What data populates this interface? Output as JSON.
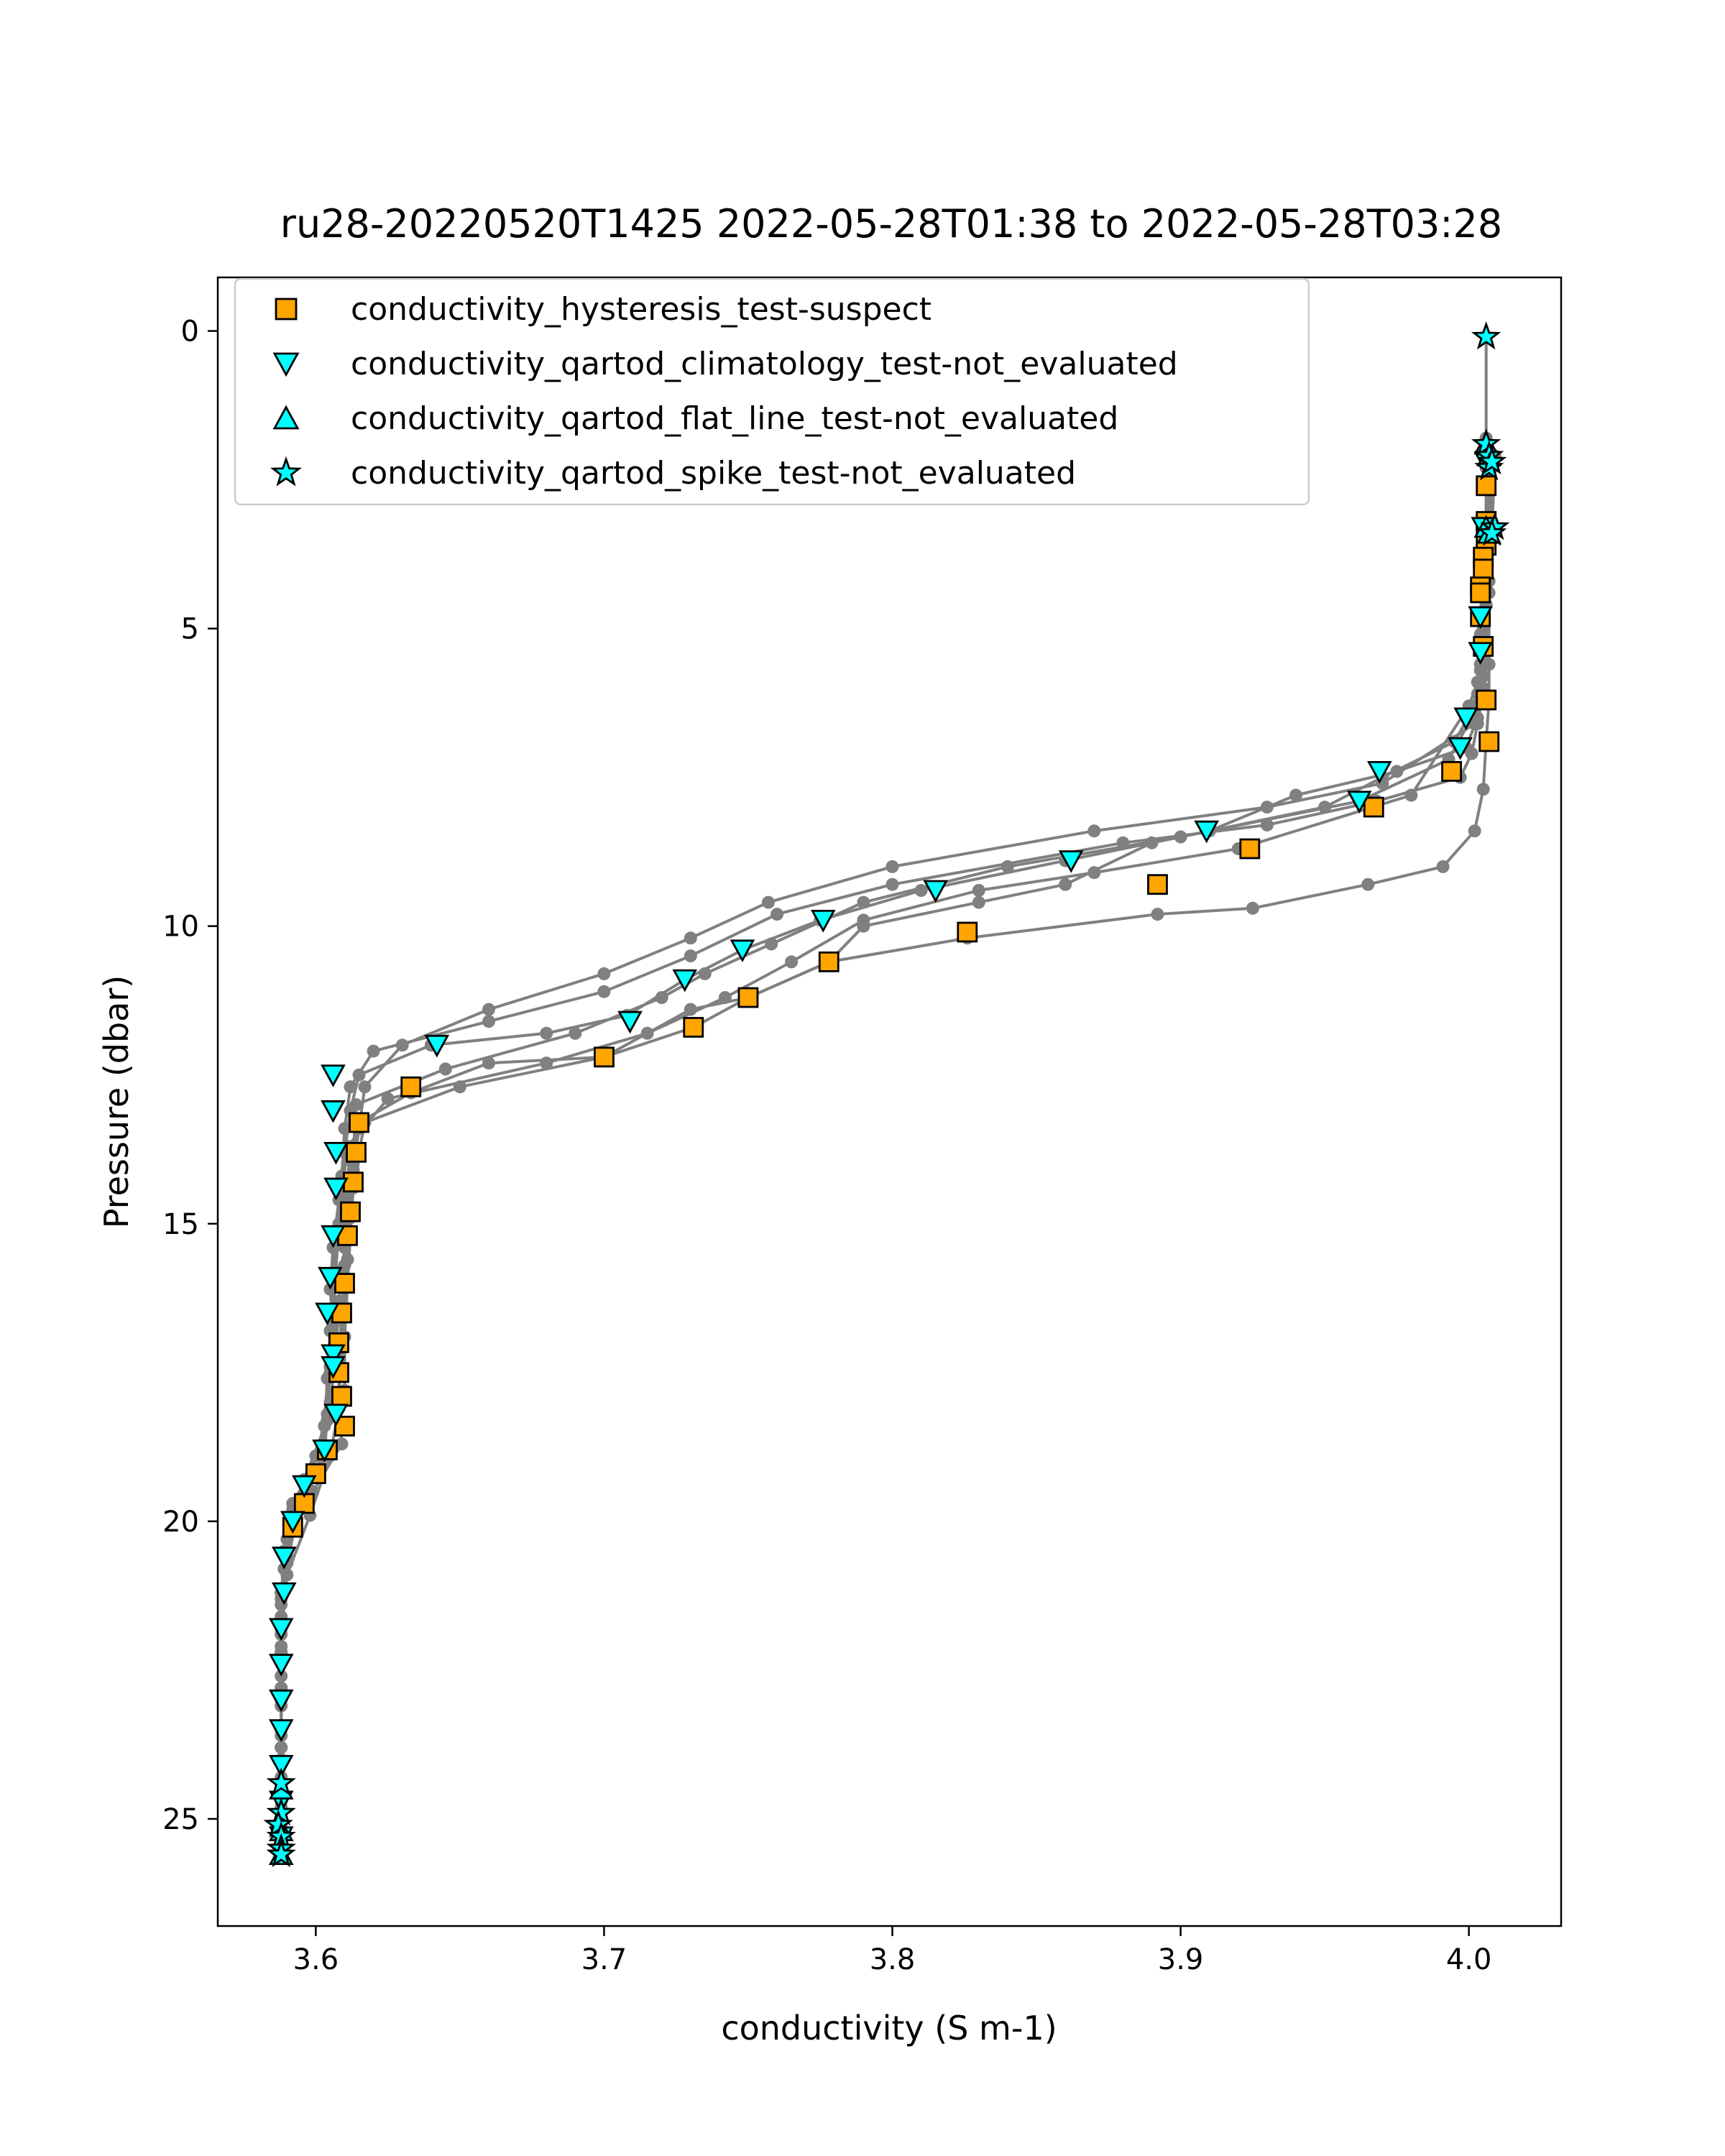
{
  "chart_data": {
    "type": "scatter",
    "title": "ru28-20220520T1425 2022-05-28T01:38 to 2022-05-28T03:28",
    "xlabel": "conductivity (S m-1)",
    "ylabel": "Pressure (dbar)",
    "xlim": [
      3.566,
      4.032
    ],
    "ylim": [
      26.8,
      -0.9
    ],
    "y_inverted": true,
    "grid": false,
    "legend_position": "upper left",
    "x_ticks": [
      3.6,
      3.7,
      3.8,
      3.9,
      4.0
    ],
    "x_tick_labels": [
      "3.6",
      "3.7",
      "3.8",
      "3.9",
      "4.0"
    ],
    "y_ticks": [
      0,
      5,
      10,
      15,
      20,
      25
    ],
    "y_tick_labels": [
      "0",
      "5",
      "10",
      "15",
      "20",
      "25"
    ],
    "colors": {
      "profile_line": "#808080",
      "hysteresis": "#ffa500",
      "qartod": "#00ffff",
      "edge": "#000000"
    },
    "profiles": [
      {
        "x": [
          4.006,
          4.006,
          4.006,
          4.006,
          4.006,
          4.005,
          4.004,
          4.004,
          4.005,
          4.003,
          3.999,
          3.975,
          3.94,
          3.91,
          3.86,
          3.81,
          3.775,
          3.748,
          3.728,
          3.708,
          3.68,
          3.64,
          3.615,
          3.612,
          3.61,
          3.608,
          3.606,
          3.605,
          3.606,
          3.605,
          3.604,
          3.603,
          3.597,
          3.59,
          3.588,
          3.588,
          3.588,
          3.588,
          3.588,
          3.588,
          3.588
        ],
        "y": [
          0.1,
          1.8,
          2.1,
          2.3,
          3.3,
          4.0,
          4.8,
          5.4,
          6.0,
          6.5,
          7.0,
          7.4,
          7.8,
          8.4,
          8.9,
          9.4,
          9.9,
          10.4,
          10.9,
          11.5,
          11.8,
          12.0,
          12.5,
          13.1,
          13.8,
          14.6,
          15.4,
          16.1,
          16.7,
          17.4,
          18.2,
          18.9,
          19.4,
          20.6,
          21.4,
          22.2,
          23.0,
          23.8,
          24.5,
          25.1,
          25.6
        ]
      },
      {
        "x": [
          4.007,
          4.007,
          4.006,
          4.006,
          4.005,
          4.004,
          4.003,
          4.001,
          3.997,
          3.968,
          3.93,
          3.88,
          3.8,
          3.76,
          3.73,
          3.7,
          3.66,
          3.62,
          3.612,
          3.61,
          3.609,
          3.608,
          3.607,
          3.606,
          3.605,
          3.601,
          3.592,
          3.589,
          3.588,
          3.588,
          3.588,
          3.588,
          3.588
        ],
        "y": [
          2.2,
          3.3,
          4.3,
          5.2,
          5.8,
          6.2,
          6.6,
          7.1,
          7.5,
          7.9,
          8.3,
          8.6,
          9.3,
          9.8,
          10.5,
          11.1,
          11.6,
          12.1,
          12.7,
          13.4,
          14.2,
          15.0,
          15.8,
          16.6,
          17.5,
          18.9,
          19.7,
          20.5,
          21.3,
          22.2,
          23.0,
          24.0,
          25.3
        ]
      },
      {
        "x": [
          4.008,
          4.007,
          4.006,
          4.005,
          4.004,
          4.002,
          3.993,
          3.962,
          3.9,
          3.84,
          3.79,
          3.758,
          3.735,
          3.72,
          3.69,
          3.645,
          3.614,
          3.613,
          3.611,
          3.61,
          3.608,
          3.607,
          3.605,
          3.6,
          3.592,
          3.589,
          3.588,
          3.588,
          3.588,
          3.588
        ],
        "y": [
          2.3,
          3.5,
          4.6,
          5.5,
          6.0,
          6.4,
          7.2,
          7.9,
          8.5,
          9.0,
          9.6,
          10.3,
          10.8,
          11.2,
          11.8,
          12.4,
          13.0,
          13.8,
          14.6,
          15.4,
          16.3,
          17.2,
          18.0,
          18.9,
          19.8,
          20.8,
          21.8,
          22.8,
          23.8,
          24.9
        ]
      },
      {
        "x": [
          4.006,
          4.006,
          4.006,
          4.005,
          4.004,
          4.003,
          4.0,
          3.98,
          3.92,
          3.87,
          3.83,
          3.79,
          3.765,
          3.742,
          3.715,
          3.68,
          3.625,
          3.611,
          3.609,
          3.607,
          3.606,
          3.605,
          3.604,
          3.603,
          3.602,
          3.595,
          3.59,
          3.588,
          3.588,
          3.588,
          3.588
        ],
        "y": [
          2.0,
          2.6,
          3.8,
          4.4,
          5.1,
          5.9,
          6.3,
          7.8,
          8.7,
          9.1,
          9.4,
          9.9,
          10.6,
          11.2,
          11.8,
          12.3,
          12.9,
          13.7,
          14.5,
          15.2,
          16.0,
          16.8,
          17.6,
          18.4,
          19.1,
          19.6,
          20.7,
          21.6,
          22.6,
          23.6,
          24.7
        ]
      },
      {
        "x": [
          4.009,
          4.008,
          4.007,
          4.006,
          4.005,
          4.004,
          4.003,
          4.002,
          3.97,
          3.93,
          3.87,
          3.8,
          3.757,
          3.73,
          3.7,
          3.66,
          3.63,
          3.617,
          3.615,
          3.613,
          3.612,
          3.611,
          3.61,
          3.609,
          3.608,
          3.609,
          3.599,
          3.59,
          3.588,
          3.588,
          3.588,
          3.588
        ],
        "y": [
          2.1,
          3.4,
          4.2,
          4.6,
          5.3,
          5.7,
          6.1,
          6.6,
          7.6,
          8.0,
          8.4,
          9.0,
          9.6,
          10.2,
          10.8,
          11.4,
          12.0,
          12.7,
          13.4,
          14.1,
          14.9,
          15.6,
          16.4,
          17.1,
          17.9,
          18.7,
          19.5,
          20.3,
          21.2,
          22.1,
          23.1,
          24.3
        ]
      },
      {
        "x": [
          4.007,
          4.007,
          4.006,
          4.005,
          4.004,
          4.002,
          3.995,
          3.97,
          3.95,
          3.89,
          3.86,
          3.83,
          3.79,
          3.778,
          3.75,
          3.73,
          3.7,
          3.66,
          3.633,
          3.615,
          3.613,
          3.611,
          3.61,
          3.609,
          3.608,
          3.608,
          3.605,
          3.598,
          3.59,
          3.588,
          3.588,
          3.588,
          3.588
        ],
        "y": [
          2.4,
          3.4,
          4.1,
          5.0,
          5.6,
          6.3,
          6.9,
          7.5,
          8.0,
          8.6,
          9.3,
          9.6,
          10.0,
          10.6,
          11.2,
          11.4,
          12.2,
          12.3,
          12.8,
          13.3,
          14.0,
          14.9,
          15.7,
          16.5,
          17.3,
          18.1,
          18.9,
          19.9,
          20.9,
          21.9,
          22.8,
          23.8,
          24.8
        ]
      },
      {
        "x": [
          4.008,
          4.008,
          4.007,
          4.007,
          4.007,
          4.007,
          4.006,
          4.005,
          4.002,
          3.991,
          3.965,
          3.925,
          3.892,
          3.826,
          3.778,
          3.75,
          3.731,
          3.7,
          3.65,
          3.617,
          3.615,
          3.613,
          3.612,
          3.611,
          3.61,
          3.61,
          3.604,
          3.596,
          3.592,
          3.588,
          3.588,
          3.588
        ],
        "y": [
          2.2,
          3.2,
          3.7,
          4.4,
          5.6,
          6.2,
          6.9,
          7.7,
          8.4,
          9.0,
          9.3,
          9.7,
          9.8,
          10.2,
          10.6,
          11.2,
          11.7,
          12.2,
          12.7,
          13.3,
          13.8,
          14.4,
          15.2,
          16.0,
          16.9,
          17.8,
          18.3,
          19.3,
          20.1,
          21.2,
          22.3,
          23.5
        ]
      }
    ],
    "series": [
      {
        "name": "conductivity_hysteresis_test-suspect",
        "marker": "square",
        "x": [
          4.006,
          4.006,
          4.006,
          4.006,
          4.005,
          4.005,
          4.004,
          4.004,
          4.004,
          4.005,
          4.006,
          4.007,
          3.994,
          3.967,
          3.924,
          3.892,
          3.826,
          3.778,
          3.75,
          3.731,
          3.7,
          3.633,
          3.615,
          3.614,
          3.613,
          3.612,
          3.611,
          3.61,
          3.609,
          3.608,
          3.608,
          3.609,
          3.61,
          3.604,
          3.6,
          3.596,
          3.592
        ],
        "y": [
          2.6,
          3.2,
          3.3,
          3.6,
          3.8,
          4.0,
          4.3,
          4.4,
          4.8,
          5.3,
          6.2,
          6.9,
          7.4,
          8.0,
          8.7,
          9.3,
          10.1,
          10.6,
          11.2,
          11.7,
          12.2,
          12.7,
          13.3,
          13.8,
          14.3,
          14.8,
          15.2,
          16.0,
          16.5,
          17.0,
          17.5,
          17.9,
          18.4,
          18.8,
          19.2,
          19.7,
          20.1
        ]
      },
      {
        "name": "conductivity_qartod_climatology_test-not_evaluated",
        "marker": "triangle_down",
        "x": [
          4.006,
          4.005,
          4.004,
          4.004,
          3.999,
          3.997,
          3.969,
          3.962,
          3.909,
          3.862,
          3.815,
          3.776,
          3.748,
          3.728,
          3.709,
          3.642,
          3.606,
          3.606,
          3.607,
          3.607,
          3.606,
          3.605,
          3.604,
          3.606,
          3.606,
          3.607,
          3.603,
          3.596,
          3.592,
          3.589,
          3.589,
          3.588,
          3.588,
          3.588,
          3.588,
          3.588,
          3.588,
          3.588
        ],
        "y": [
          2.2,
          3.3,
          4.8,
          5.4,
          6.5,
          7.0,
          7.4,
          7.9,
          8.4,
          8.9,
          9.4,
          9.9,
          10.4,
          10.9,
          11.6,
          12.0,
          12.5,
          13.1,
          13.8,
          14.4,
          15.2,
          15.9,
          16.5,
          17.2,
          17.4,
          18.2,
          18.8,
          19.4,
          20.0,
          20.6,
          21.2,
          21.8,
          22.4,
          23.0,
          23.5,
          24.1,
          24.7,
          25.3
        ]
      },
      {
        "name": "conductivity_qartod_flat_line_test-not_evaluated",
        "marker": "triangle_up",
        "x": [
          4.006,
          4.007,
          4.006,
          4.007,
          3.588,
          3.588,
          3.588
        ],
        "y": [
          1.9,
          2.1,
          3.3,
          3.4,
          24.5,
          25.2,
          25.6
        ]
      },
      {
        "name": "conductivity_qartod_spike_test-not_evaluated",
        "marker": "star",
        "x": [
          4.006,
          4.006,
          4.007,
          4.007,
          4.008,
          4.009,
          4.008,
          3.588,
          3.588,
          3.587,
          3.588,
          3.588,
          3.588
        ],
        "y": [
          0.1,
          1.9,
          2.1,
          2.3,
          2.2,
          3.3,
          3.4,
          24.4,
          24.9,
          25.1,
          25.3,
          25.5,
          25.6
        ]
      }
    ]
  }
}
